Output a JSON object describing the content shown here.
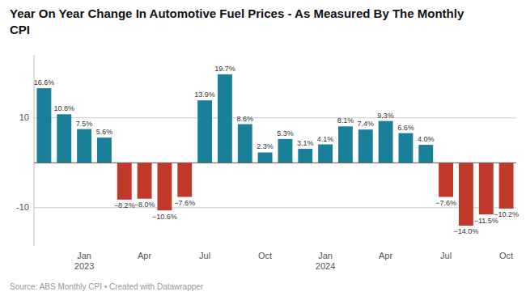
{
  "chart_data": {
    "type": "bar",
    "title": "Year On Year Change In Automotive Fuel Prices - As Measured By The Monthly\nCPI",
    "annotations": [
      "Source: ABS Monthly CPI • Created with Datawrapper"
    ],
    "categories": [
      null,
      null,
      "Jan\n2023",
      null,
      null,
      "Apr",
      null,
      null,
      "Jul",
      null,
      null,
      "Oct",
      null,
      null,
      "Jan\n2024",
      null,
      null,
      "Apr",
      null,
      null,
      "Jul",
      null,
      null,
      "Oct"
    ],
    "values": [
      16.6,
      10.8,
      7.5,
      5.6,
      -8.2,
      -8.0,
      -10.6,
      -7.6,
      13.9,
      19.7,
      8.6,
      2.3,
      5.3,
      3.1,
      4.1,
      8.1,
      7.4,
      9.3,
      6.6,
      4.0,
      -7.6,
      -14.0,
      -11.5,
      -10.2
    ],
    "value_labels": [
      "16.6%",
      "10.8%",
      "7.5%",
      "5.6%",
      "−8.2%",
      "−8.0%",
      "−10.6%",
      "−7.6%",
      "13.9%",
      "19.7%",
      "8.6%",
      "2.3%",
      "5.3%",
      "3.1%",
      "4.1%",
      "8.1%",
      "7.4%",
      "9.3%",
      "6.6%",
      "4.0%",
      "−7.6%",
      "−14.0%",
      "−11.5%",
      "−10.2%"
    ],
    "colors": [
      "#1a8099",
      "#1a8099",
      "#1a8099",
      "#1a8099",
      "#c0392b",
      "#c0392b",
      "#c0392b",
      "#c0392b",
      "#1a8099",
      "#1a8099",
      "#1a8099",
      "#1a8099",
      "#1a8099",
      "#1a8099",
      "#1a8099",
      "#1a8099",
      "#1a8099",
      "#1a8099",
      "#1a8099",
      "#1a8099",
      "#c0392b",
      "#c0392b",
      "#c0392b",
      "#c0392b"
    ],
    "ylim": [
      -18.5,
      24
    ],
    "yticks": [
      -10,
      10
    ],
    "grid": true,
    "data_labels": true
  }
}
